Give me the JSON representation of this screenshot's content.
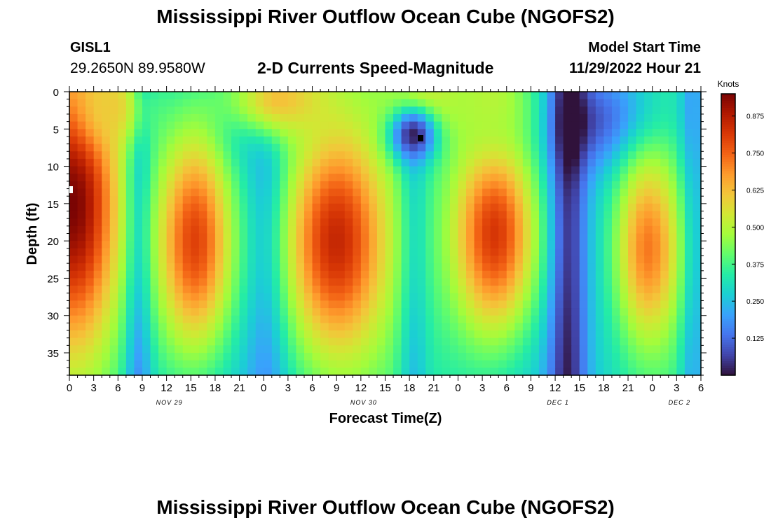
{
  "header": {
    "title": "Mississippi River Outflow Ocean Cube (NGOFS2)",
    "station_id": "GISL1",
    "station_coords": "29.2650N  89.9580W",
    "subtitle": "2-D Currents Speed-Magnitude",
    "model_start_label": "Model Start Time",
    "model_start_value": "11/29/2022 Hour 21"
  },
  "footer": {
    "title_repeat": "Mississippi River Outflow Ocean Cube (NGOFS2)"
  },
  "chart_data": {
    "type": "heatmap",
    "xlabel": "Forecast Time(Z)",
    "ylabel": "Depth (ft)",
    "x_hours_range": [
      0,
      78
    ],
    "ylim": [
      0,
      38
    ],
    "y_inverted": true,
    "x_tick_labels": [
      "0",
      "3",
      "6",
      "9",
      "12",
      "15",
      "18",
      "21",
      "0",
      "3",
      "6",
      "9",
      "12",
      "15",
      "18",
      "21",
      "0",
      "3",
      "6",
      "9",
      "12",
      "15",
      "18",
      "21",
      "0",
      "3",
      "6"
    ],
    "y_tick_labels": [
      "0",
      "5",
      "10",
      "15",
      "20",
      "25",
      "30",
      "35"
    ],
    "date_labels": [
      {
        "text": "NOV 29",
        "hour": 12
      },
      {
        "text": "NOV 30",
        "hour": 36
      },
      {
        "text": "DEC 1",
        "hour": 60
      },
      {
        "text": "DEC 2",
        "hour": 75
      }
    ],
    "colorbar": {
      "unit": "Knots",
      "min": 0,
      "max": 0.95,
      "ticks": [
        "0.125",
        "0.250",
        "0.375",
        "0.500",
        "0.625",
        "0.750",
        "0.875"
      ],
      "colormap": [
        "#30123b",
        "#4145ab",
        "#4675ed",
        "#39a2fc",
        "#1bcfd4",
        "#24eca6",
        "#61fc6c",
        "#a4fc3b",
        "#d1e834",
        "#f3c63a",
        "#fe9b2d",
        "#f36315",
        "#d93806",
        "#b11901",
        "#7a0403"
      ]
    },
    "features": [
      {
        "name": "left-core",
        "t": 0.5,
        "t_spread": 4.0,
        "depth": 15,
        "d_spread": 14,
        "value": 0.95
      },
      {
        "name": "ebb-1",
        "t": 15.5,
        "t_spread": 3.5,
        "depth": 20,
        "d_spread": 11,
        "value": 0.8
      },
      {
        "name": "ebb-2",
        "t": 33,
        "t_spread": 4.5,
        "depth": 20,
        "d_spread": 11,
        "value": 0.85
      },
      {
        "name": "ebb-3",
        "t": 52.5,
        "t_spread": 3.8,
        "depth": 19,
        "d_spread": 10,
        "value": 0.82
      },
      {
        "name": "ebb-4",
        "t": 71.5,
        "t_spread": 2.8,
        "depth": 21,
        "d_spread": 9,
        "value": 0.72
      },
      {
        "name": "surface-1",
        "t": 5,
        "t_spread": 3,
        "depth": 2,
        "d_spread": 4,
        "value": 0.6
      },
      {
        "name": "surface-2",
        "t": 26,
        "t_spread": 5,
        "depth": 1,
        "d_spread": 4,
        "value": 0.62
      },
      {
        "name": "surface-3",
        "t": 44,
        "t_spread": 4,
        "depth": 1,
        "d_spread": 4,
        "value": 0.55
      },
      {
        "name": "surface-4",
        "t": 52,
        "t_spread": 4,
        "depth": 1,
        "d_spread": 5,
        "value": 0.5
      },
      {
        "name": "minimum",
        "t": 42.5,
        "t_spread": 2,
        "depth": 5.8,
        "d_spread": 2.5,
        "value": 0.02
      }
    ]
  }
}
